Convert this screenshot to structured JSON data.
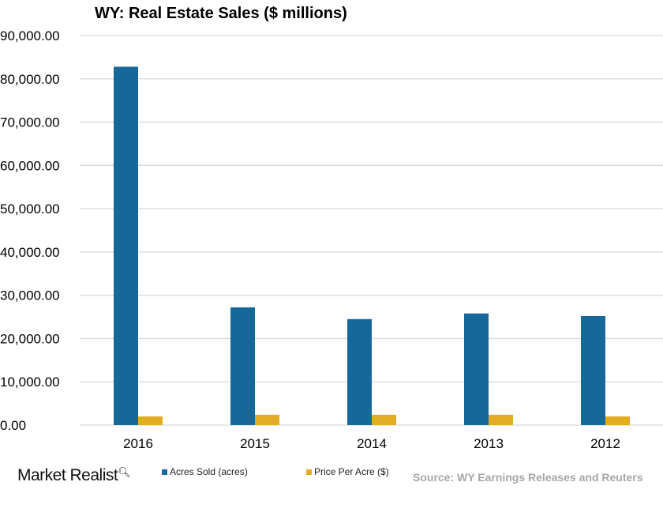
{
  "chart_data": {
    "type": "bar",
    "title": "WY: Real Estate Sales ($ millions)",
    "categories": [
      "2016",
      "2015",
      "2014",
      "2013",
      "2012"
    ],
    "series": [
      {
        "name": "Acres Sold (acres)",
        "color": "#17689a",
        "values": [
          82800,
          27200,
          24500,
          25800,
          25200
        ]
      },
      {
        "name": "Price Per Acre ($)",
        "color": "#e2ac24",
        "values": [
          2000,
          2400,
          2400,
          2400,
          2000
        ]
      }
    ],
    "ylim": [
      0,
      90000
    ],
    "yticks": [
      "0.00",
      "10,000.00",
      "20,000.00",
      "30,000.00",
      "40,000.00",
      "50,000.00",
      "60,000.00",
      "70,000.00",
      "80,000.00",
      "90,000.00"
    ],
    "grid": true,
    "legend": "bottom"
  },
  "source": "Source: WY Earnings Releases and Reuters",
  "logo": "Market Realist"
}
